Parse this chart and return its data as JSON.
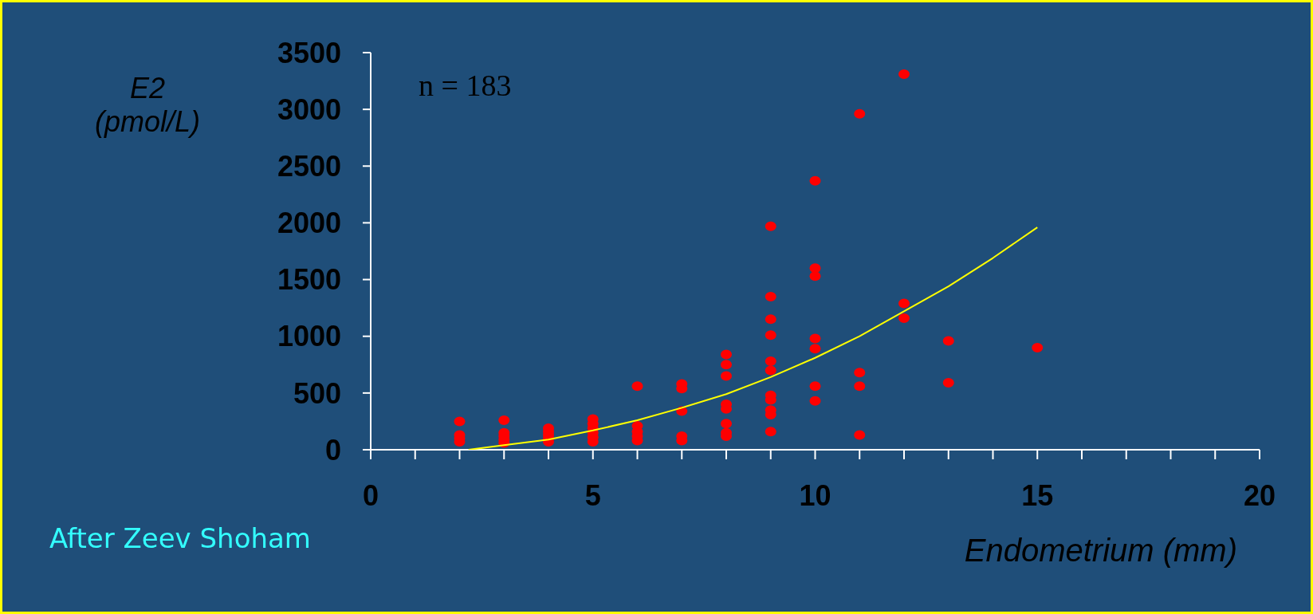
{
  "chart_data": {
    "type": "scatter",
    "ylabel": "E2 (pmol/L)",
    "xlabel": "Endometrium (mm)",
    "annotations": [
      "n = 183",
      "After Zeev Shoham"
    ],
    "xlim": [
      0,
      20
    ],
    "xticks": [
      0,
      {
        "value": 1,
        "label": null
      },
      {
        "value": 2,
        "label": null
      },
      {
        "value": 3,
        "label": null
      },
      {
        "value": 4,
        "label": null
      },
      5,
      {
        "value": 6,
        "label": null
      },
      {
        "value": 7,
        "label": null
      },
      {
        "value": 8,
        "label": null
      },
      {
        "value": 9,
        "label": null
      },
      10,
      {
        "value": 11,
        "label": null
      },
      {
        "value": 12,
        "label": null
      },
      {
        "value": 13,
        "label": null
      },
      {
        "value": 14,
        "label": null
      },
      15,
      {
        "value": 16,
        "label": null
      },
      {
        "value": 17,
        "label": null
      },
      {
        "value": 18,
        "label": null
      },
      {
        "value": 19,
        "label": null
      },
      20
    ],
    "ylim": [
      0,
      3500
    ],
    "yticks": [
      0,
      500,
      1000,
      1500,
      2000,
      2500,
      3000,
      3500
    ],
    "marker": "circle",
    "grid": false,
    "series": [
      {
        "type": "scatter",
        "color": "#ff0000",
        "x": [
          2,
          2,
          2,
          2,
          3,
          3,
          3,
          3,
          3,
          4,
          4,
          4,
          4,
          4,
          5,
          5,
          5,
          5,
          5,
          5,
          6,
          6,
          6,
          6,
          6,
          7,
          7,
          7,
          7,
          7,
          8,
          8,
          8,
          8,
          8,
          8,
          8,
          8,
          9,
          9,
          9,
          9,
          9,
          9,
          9,
          9,
          9,
          9,
          9,
          10,
          10,
          10,
          10,
          10,
          10,
          10,
          11,
          11,
          11,
          11,
          12,
          12,
          12,
          13,
          13,
          15
        ],
        "values": [
          250,
          130,
          100,
          70,
          260,
          150,
          120,
          90,
          60,
          190,
          160,
          130,
          100,
          70,
          270,
          230,
          190,
          150,
          110,
          70,
          560,
          210,
          160,
          120,
          80,
          580,
          540,
          340,
          120,
          80,
          840,
          750,
          650,
          400,
          360,
          230,
          150,
          120,
          1970,
          1350,
          1150,
          1010,
          780,
          700,
          480,
          440,
          350,
          310,
          160,
          2370,
          1600,
          1530,
          980,
          890,
          560,
          430,
          2960,
          680,
          560,
          130,
          3310,
          1290,
          1160,
          960,
          590,
          900
        ]
      },
      {
        "type": "line",
        "color": "#ffff00",
        "marker": "none",
        "x": [
          2.2,
          3,
          4,
          5,
          6,
          7,
          8,
          9,
          10,
          11,
          12,
          13,
          14,
          15
        ],
        "values": [
          0,
          40,
          90,
          170,
          260,
          370,
          490,
          640,
          810,
          1000,
          1220,
          1440,
          1690,
          1960
        ]
      }
    ]
  }
}
